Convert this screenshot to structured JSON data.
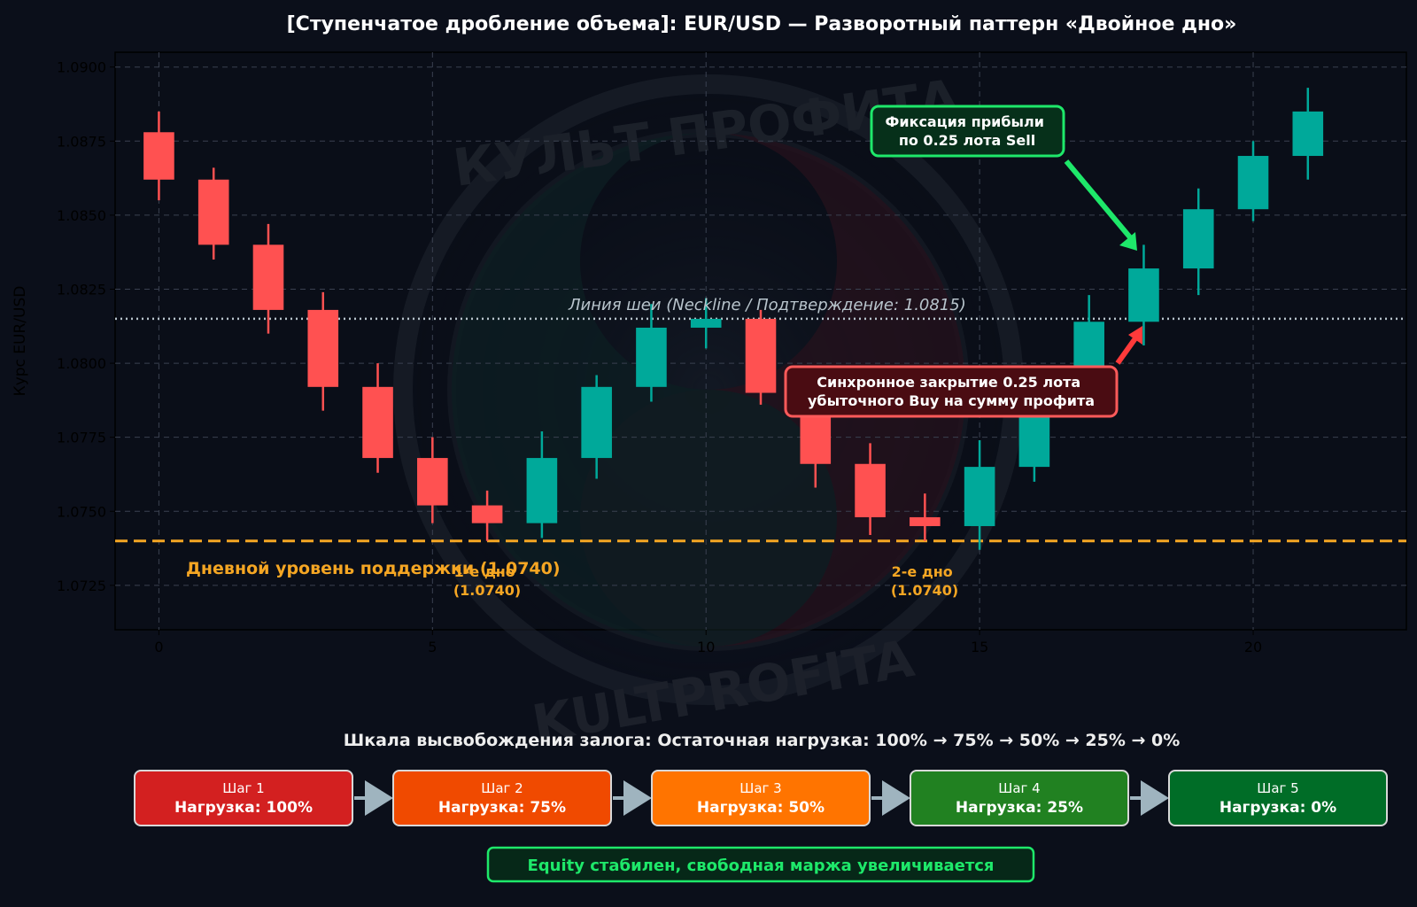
{
  "colors": {
    "background": "#0b0f1a",
    "bull": "#00a99a",
    "bear": "#ff5151",
    "support": "#f5a623",
    "neckline": "#b8c4cc",
    "grid": "#3a4150",
    "text": "#eeeeee",
    "green_box_border": "#1ee86a",
    "red_box_border": "#ff5a5a"
  },
  "chart_data": {
    "type": "candlestick",
    "title": "[Ступенчатое дробление объема]: EUR/USD — Разворотный паттерн «Двойное дно»",
    "ylabel": "Курс EUR/USD",
    "xlabel": "",
    "xlim": [
      -0.8,
      22.8
    ],
    "ylim": [
      1.071,
      1.0905
    ],
    "x_ticks": [
      0,
      5,
      10,
      15,
      20
    ],
    "y_ticks": [
      1.0725,
      1.075,
      1.0775,
      1.08,
      1.0825,
      1.085,
      1.0875,
      1.09
    ],
    "grid": true,
    "candles": [
      {
        "x": 0,
        "open": 1.0878,
        "high": 1.0885,
        "low": 1.0855,
        "close": 1.0862
      },
      {
        "x": 1,
        "open": 1.0862,
        "high": 1.0866,
        "low": 1.0835,
        "close": 1.084
      },
      {
        "x": 2,
        "open": 1.084,
        "high": 1.0847,
        "low": 1.081,
        "close": 1.0818
      },
      {
        "x": 3,
        "open": 1.0818,
        "high": 1.0824,
        "low": 1.0784,
        "close": 1.0792
      },
      {
        "x": 4,
        "open": 1.0792,
        "high": 1.08,
        "low": 1.0763,
        "close": 1.0768
      },
      {
        "x": 5,
        "open": 1.0768,
        "high": 1.0775,
        "low": 1.0746,
        "close": 1.0752
      },
      {
        "x": 6,
        "open": 1.0752,
        "high": 1.0757,
        "low": 1.074,
        "close": 1.0746
      },
      {
        "x": 7,
        "open": 1.0746,
        "high": 1.0777,
        "low": 1.0741,
        "close": 1.0768
      },
      {
        "x": 8,
        "open": 1.0768,
        "high": 1.0796,
        "low": 1.0761,
        "close": 1.0792
      },
      {
        "x": 9,
        "open": 1.0792,
        "high": 1.082,
        "low": 1.0787,
        "close": 1.0812
      },
      {
        "x": 10,
        "open": 1.0812,
        "high": 1.0822,
        "low": 1.0805,
        "close": 1.0815
      },
      {
        "x": 11,
        "open": 1.0815,
        "high": 1.0818,
        "low": 1.0786,
        "close": 1.079
      },
      {
        "x": 12,
        "open": 1.079,
        "high": 1.0794,
        "low": 1.0758,
        "close": 1.0766
      },
      {
        "x": 13,
        "open": 1.0766,
        "high": 1.0773,
        "low": 1.0742,
        "close": 1.0748
      },
      {
        "x": 14,
        "open": 1.0748,
        "high": 1.0756,
        "low": 1.074,
        "close": 1.0745
      },
      {
        "x": 15,
        "open": 1.0745,
        "high": 1.0774,
        "low": 1.0737,
        "close": 1.0765
      },
      {
        "x": 16,
        "open": 1.0765,
        "high": 1.0794,
        "low": 1.076,
        "close": 1.0789
      },
      {
        "x": 17,
        "open": 1.0789,
        "high": 1.0823,
        "low": 1.0785,
        "close": 1.0814
      },
      {
        "x": 18,
        "open": 1.0814,
        "high": 1.084,
        "low": 1.0806,
        "close": 1.0832
      },
      {
        "x": 19,
        "open": 1.0832,
        "high": 1.0859,
        "low": 1.0823,
        "close": 1.0852
      },
      {
        "x": 20,
        "open": 1.0852,
        "high": 1.0875,
        "low": 1.0848,
        "close": 1.087
      },
      {
        "x": 21,
        "open": 1.087,
        "high": 1.0893,
        "low": 1.0862,
        "close": 1.0885
      }
    ],
    "support_level": {
      "value": 1.074,
      "label": "Дневной уровень поддержки (1.0740)"
    },
    "neckline": {
      "value": 1.0815,
      "label": "Линия шеи (Neckline / Подтверждение: 1.0815)"
    },
    "annotations": [
      {
        "id": "bottom1",
        "line1": "1-е дно",
        "line2": "(1.0740)",
        "x": 6.0,
        "y": 1.074
      },
      {
        "id": "bottom2",
        "line1": "2-е дно",
        "line2": "(1.0740)",
        "x": 14.0,
        "y": 1.074
      },
      {
        "id": "take-profit",
        "line1": "Фиксация прибыли",
        "line2": "по 0.25 лота Sell",
        "x": 18.0,
        "y": 1.0838
      },
      {
        "id": "sync-close",
        "line1": "Синхронное закрытие 0.25 лота",
        "line2": "убыточного Buy на сумму профита",
        "x": 18.0,
        "y": 1.0815
      }
    ]
  },
  "watermark": {
    "text_top": "КУЛЬТ ПРОФИТА",
    "text_bottom": "KULTPROFITA"
  },
  "scale": {
    "title": "Шкала высвобождения залога: Остаточная нагрузка: 100% → 75% → 50% → 25% → 0%",
    "steps": [
      {
        "step": "Шаг 1",
        "load": "Нагрузка: 100%",
        "color": "#d32020"
      },
      {
        "step": "Шаг 2",
        "load": "Нагрузка: 75%",
        "color": "#f04a00"
      },
      {
        "step": "Шаг 3",
        "load": "Нагрузка: 50%",
        "color": "#ff7400"
      },
      {
        "step": "Шаг 4",
        "load": "Нагрузка: 25%",
        "color": "#218121"
      },
      {
        "step": "Шаг 5",
        "load": "Нагрузка: 0%",
        "color": "#006d27"
      }
    ],
    "footer": "Equity стабилен, свободная маржа увеличивается"
  }
}
